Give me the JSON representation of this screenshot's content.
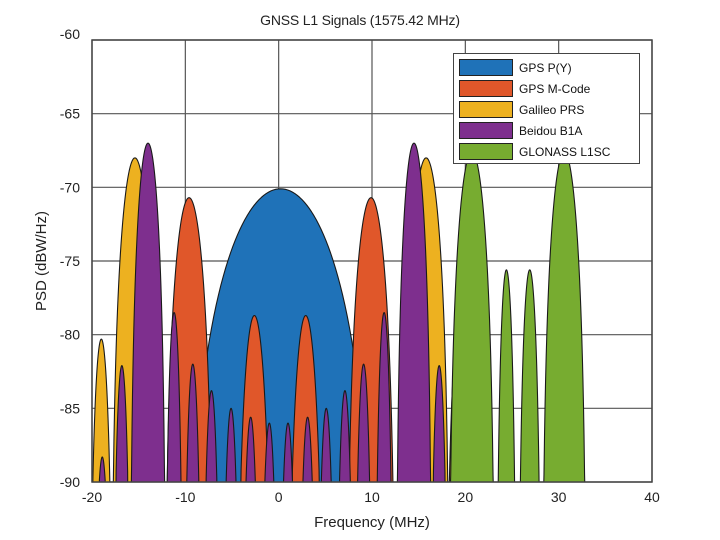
{
  "chart_data": {
    "type": "area",
    "title": "GNSS L1 Signals (1575.42 MHz)",
    "xlabel": "Frequency (MHz)",
    "ylabel": "PSD (dBW/Hz)",
    "xlim": [
      -20,
      40
    ],
    "ylim": [
      -90,
      -60
    ],
    "xticks": [
      -20,
      -10,
      0,
      10,
      20,
      30,
      40
    ],
    "yticks": [
      -60,
      -65,
      -70,
      -75,
      -80,
      -85,
      -90
    ],
    "grid": true,
    "legend_position": "upper right",
    "series": [
      {
        "name": "GPS P(Y)",
        "color": "#1f72b8",
        "lobes": [
          {
            "center": 0.2,
            "peak": -70.1,
            "half_width": 10.23
          }
        ]
      },
      {
        "name": "GPS M-Code",
        "color": "#e0572a",
        "lobes": [
          {
            "center": -9.6,
            "peak": -70.7,
            "half_width": 2.6
          },
          {
            "center": 9.9,
            "peak": -70.7,
            "half_width": 2.6
          },
          {
            "center": -2.6,
            "peak": -78.7,
            "half_width": 1.9
          },
          {
            "center": 2.9,
            "peak": -78.7,
            "half_width": 1.9
          }
        ]
      },
      {
        "name": "Galileo PRS",
        "color": "#edb120",
        "lobes": [
          {
            "center": -15.4,
            "peak": -68.0,
            "half_width": 2.5
          },
          {
            "center": 15.8,
            "peak": -68.0,
            "half_width": 2.5
          },
          {
            "center": -19.0,
            "peak": -80.3,
            "half_width": 1.25
          },
          {
            "center": 19.2,
            "peak": -80.3,
            "half_width": 1.25
          }
        ]
      },
      {
        "name": "Beidou B1A",
        "color": "#7e2f8e",
        "lobes": [
          {
            "center": -18.9,
            "peak": -88.3,
            "half_width": 0.95
          },
          {
            "center": -16.8,
            "peak": -82.1,
            "half_width": 0.95
          },
          {
            "center": -14.0,
            "peak": -67.0,
            "half_width": 1.9
          },
          {
            "center": -11.2,
            "peak": -78.5,
            "half_width": 0.95
          },
          {
            "center": -9.2,
            "peak": -82.0,
            "half_width": 0.95
          },
          {
            "center": -7.2,
            "peak": -83.8,
            "half_width": 0.95
          },
          {
            "center": -5.1,
            "peak": -85.0,
            "half_width": 0.95
          },
          {
            "center": -3.0,
            "peak": -85.6,
            "half_width": 0.95
          },
          {
            "center": -1.0,
            "peak": -86.0,
            "half_width": 0.95
          },
          {
            "center": 1.0,
            "peak": -86.0,
            "half_width": 0.95
          },
          {
            "center": 3.1,
            "peak": -85.6,
            "half_width": 0.95
          },
          {
            "center": 5.1,
            "peak": -85.0,
            "half_width": 0.95
          },
          {
            "center": 7.1,
            "peak": -83.8,
            "half_width": 0.95
          },
          {
            "center": 9.1,
            "peak": -82.0,
            "half_width": 0.95
          },
          {
            "center": 11.3,
            "peak": -78.5,
            "half_width": 0.95
          },
          {
            "center": 14.5,
            "peak": -67.0,
            "half_width": 1.9
          },
          {
            "center": 17.2,
            "peak": -82.1,
            "half_width": 0.95
          }
        ]
      },
      {
        "name": "GLONASS L1SC",
        "color": "#77ac30",
        "lobes": [
          {
            "center": 20.7,
            "peak": -67.6,
            "half_width": 2.45
          },
          {
            "center": 24.4,
            "peak": -75.6,
            "half_width": 1.05
          },
          {
            "center": 26.9,
            "peak": -75.6,
            "half_width": 1.2
          },
          {
            "center": 30.6,
            "peak": -67.6,
            "half_width": 2.35
          }
        ]
      }
    ]
  },
  "legend": {
    "items": [
      {
        "label": "GPS P(Y)",
        "color": "#1f72b8"
      },
      {
        "label": "GPS M-Code",
        "color": "#e0572a"
      },
      {
        "label": "Galileo PRS",
        "color": "#edb120"
      },
      {
        "label": "Beidou B1A",
        "color": "#7e2f8e"
      },
      {
        "label": "GLONASS L1SC",
        "color": "#77ac30"
      }
    ]
  }
}
